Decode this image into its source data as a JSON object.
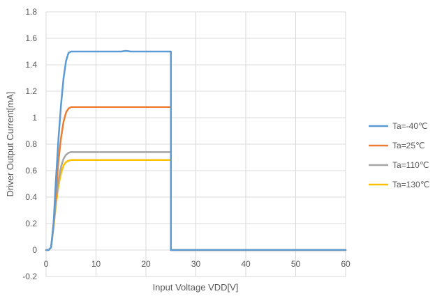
{
  "chart_data": {
    "type": "line",
    "title": "",
    "xlabel": "Input Voltage VDD[V]",
    "ylabel": "Driver Output Current[mA]",
    "xlim": [
      0,
      60
    ],
    "ylim": [
      -0.2,
      1.8
    ],
    "x_ticks": [
      0,
      10,
      20,
      30,
      40,
      50,
      60
    ],
    "y_ticks": [
      -0.2,
      0,
      0.2,
      0.4,
      0.6,
      0.8,
      1,
      1.2,
      1.4,
      1.6,
      1.8
    ],
    "x_tick_labels": [
      "0",
      "10",
      "20",
      "30",
      "40",
      "50",
      "60"
    ],
    "y_tick_labels": [
      "-0.2",
      "0",
      "0.2",
      "0.4",
      "0.6",
      "0.8",
      "1",
      "1.2",
      "1.4",
      "1.6",
      "1.8"
    ],
    "grid": true,
    "legend_position": "right",
    "series": [
      {
        "name": "Ta=-40℃",
        "color": "#5B9BD5",
        "points": [
          [
            0,
            0
          ],
          [
            0.5,
            0
          ],
          [
            1,
            0.02
          ],
          [
            1.5,
            0.2
          ],
          [
            2,
            0.55
          ],
          [
            2.5,
            0.85
          ],
          [
            3,
            1.1
          ],
          [
            3.5,
            1.3
          ],
          [
            4,
            1.43
          ],
          [
            4.5,
            1.49
          ],
          [
            5,
            1.5
          ],
          [
            15,
            1.5
          ],
          [
            16,
            1.505
          ],
          [
            17,
            1.5
          ],
          [
            25,
            1.5
          ],
          [
            25,
            0
          ],
          [
            60,
            0
          ]
        ]
      },
      {
        "name": "Ta=25℃",
        "color": "#ED7D31",
        "points": [
          [
            0,
            0
          ],
          [
            0.5,
            0
          ],
          [
            1,
            0.02
          ],
          [
            1.5,
            0.2
          ],
          [
            2,
            0.45
          ],
          [
            2.5,
            0.68
          ],
          [
            3,
            0.85
          ],
          [
            3.5,
            0.97
          ],
          [
            4,
            1.04
          ],
          [
            4.5,
            1.07
          ],
          [
            5,
            1.08
          ],
          [
            25,
            1.08
          ],
          [
            25,
            0
          ],
          [
            60,
            0
          ]
        ]
      },
      {
        "name": "Ta=110℃",
        "color": "#A5A5A5",
        "points": [
          [
            0,
            0
          ],
          [
            0.5,
            0
          ],
          [
            1,
            0.02
          ],
          [
            1.5,
            0.18
          ],
          [
            2,
            0.38
          ],
          [
            2.5,
            0.53
          ],
          [
            3,
            0.63
          ],
          [
            3.5,
            0.69
          ],
          [
            4,
            0.72
          ],
          [
            4.5,
            0.735
          ],
          [
            5,
            0.74
          ],
          [
            25,
            0.74
          ],
          [
            25,
            0
          ],
          [
            60,
            0
          ]
        ]
      },
      {
        "name": "Ta=130℃",
        "color": "#FFC000",
        "points": [
          [
            0,
            0
          ],
          [
            0.5,
            0
          ],
          [
            1,
            0.02
          ],
          [
            1.5,
            0.17
          ],
          [
            2,
            0.35
          ],
          [
            2.5,
            0.49
          ],
          [
            3,
            0.58
          ],
          [
            3.5,
            0.64
          ],
          [
            4,
            0.665
          ],
          [
            4.5,
            0.675
          ],
          [
            5,
            0.68
          ],
          [
            25,
            0.68
          ],
          [
            25,
            0
          ],
          [
            60,
            0
          ]
        ]
      }
    ]
  }
}
